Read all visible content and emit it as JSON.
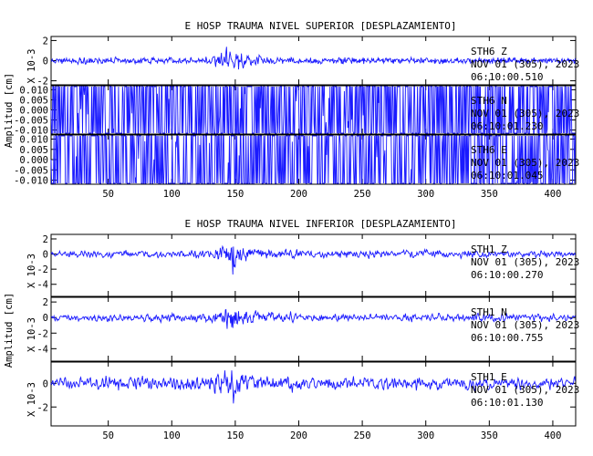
{
  "colors": {
    "trace": "#1a1aff",
    "axis": "#000000",
    "background": "#ffffff"
  },
  "chart_data": [
    {
      "type": "line",
      "title": "E HOSP TRAUMA NIVEL SUPERIOR [DESPLAZAMIENTO]",
      "ylabel": "Amplitud [cm]",
      "xlim": [
        5,
        418
      ],
      "xticks": [
        "50",
        "100",
        "150",
        "200",
        "250",
        "300",
        "350",
        "400"
      ],
      "grid": false,
      "panels": [
        {
          "scale_label": "X 10-3",
          "ylim": [
            -2.4,
            2.4
          ],
          "yticks": [
            "2",
            "0",
            "-2"
          ],
          "series": [
            {
              "station": "STH6",
              "component": "Z",
              "date": "NOV 01 (305), 2023",
              "time": "06:10:00.510",
              "x": [
                5,
                50,
                100,
                130,
                138,
                143,
                148,
                152,
                157,
                165,
                180,
                200,
                250,
                300,
                350,
                400,
                418
              ],
              "y": [
                0.1,
                0.2,
                0.1,
                0.3,
                1.4,
                2.3,
                0.8,
                1.9,
                1.1,
                0.5,
                0.3,
                0.1,
                0.0,
                0.0,
                0.0,
                0.0,
                0.0
              ]
            }
          ]
        },
        {
          "scale_label": "",
          "ylim": [
            -0.012,
            0.012
          ],
          "yticks": [
            "0.010",
            "0.005",
            "0.000",
            "-0.005",
            "-0.010"
          ],
          "series": [
            {
              "station": "STH6",
              "component": "N",
              "date": "NOV 01 (305), 2023",
              "time": "06:10:01.230",
              "x": [
                5,
                50,
                100,
                130,
                140,
                145,
                148,
                152,
                160,
                175,
                200,
                250,
                300,
                350,
                400,
                418
              ],
              "y": [
                0.0,
                0.0,
                0.0,
                0.0005,
                0.004,
                0.009,
                0.011,
                0.007,
                0.004,
                0.001,
                0.0003,
                0.0001,
                0.0,
                0.0,
                0.0,
                0.0
              ]
            }
          ]
        },
        {
          "scale_label": "",
          "ylim": [
            -0.012,
            0.012
          ],
          "yticks": [
            "0.010",
            "0.005",
            "0.000",
            "-0.005",
            "-0.010"
          ],
          "series": [
            {
              "station": "STH6",
              "component": "E",
              "date": "NOV 01 (305), 2023",
              "time": "06:10:01.045",
              "x": [
                5,
                50,
                100,
                130,
                140,
                145,
                148,
                153,
                160,
                175,
                200,
                250,
                300,
                350,
                400,
                418
              ],
              "y": [
                0.0,
                0.0,
                0.0,
                0.0005,
                0.004,
                0.008,
                0.011,
                0.006,
                0.004,
                0.0015,
                0.0005,
                0.0002,
                0.0001,
                0.0,
                0.0,
                0.0
              ]
            }
          ]
        }
      ]
    },
    {
      "type": "line",
      "title": "E HOSP TRAUMA NIVEL INFERIOR [DESPLAZAMIENTO]",
      "ylabel": "Amplitud [cm]",
      "xlim": [
        5,
        418
      ],
      "xticks": [
        "50",
        "100",
        "150",
        "200",
        "250",
        "300",
        "350",
        "400"
      ],
      "grid": false,
      "panels": [
        {
          "scale_label": "X 10-3",
          "ylim": [
            -5.6,
            2.6
          ],
          "yticks": [
            "2",
            "0",
            "-2",
            "-4"
          ],
          "series": [
            {
              "station": "STH1",
              "component": "Z",
              "date": "NOV 01 (305), 2023",
              "time": "06:10:00.270",
              "x": [
                5,
                50,
                100,
                130,
                140,
                145,
                148,
                152,
                160,
                175,
                200,
                250,
                300,
                350,
                400,
                418
              ],
              "y": [
                0.3,
                0.6,
                0.6,
                0.8,
                1.8,
                2.4,
                4.5,
                2.0,
                1.5,
                1.0,
                0.7,
                0.7,
                0.6,
                0.6,
                0.5,
                0.5
              ]
            }
          ]
        },
        {
          "scale_label": "X 10-3",
          "ylim": [
            -5.6,
            2.6
          ],
          "yticks": [
            "2",
            "0",
            "-2",
            "-4"
          ],
          "series": [
            {
              "station": "STH1",
              "component": "N",
              "date": "NOV 01 (305), 2023",
              "time": "06:10:00.755",
              "x": [
                5,
                50,
                100,
                130,
                140,
                145,
                148,
                152,
                160,
                175,
                200,
                250,
                300,
                350,
                400,
                418
              ],
              "y": [
                0.4,
                0.6,
                0.6,
                0.7,
                1.8,
                2.3,
                4.0,
                1.8,
                1.4,
                1.0,
                0.7,
                0.6,
                0.6,
                0.6,
                0.5,
                0.5
              ]
            }
          ]
        },
        {
          "scale_label": "X 10-3",
          "ylim": [
            -3.6,
            1.8
          ],
          "yticks": [
            "0",
            "-2"
          ],
          "series": [
            {
              "station": "STH1",
              "component": "E",
              "date": "NOV 01 (305), 2023",
              "time": "06:10:01.130",
              "x": [
                5,
                50,
                100,
                130,
                140,
                145,
                148,
                152,
                160,
                175,
                200,
                250,
                300,
                350,
                400,
                418
              ],
              "y": [
                0.5,
                0.8,
                0.8,
                1.0,
                1.4,
                1.8,
                3.1,
                1.5,
                1.2,
                0.9,
                0.8,
                0.7,
                0.7,
                0.7,
                0.6,
                0.6
              ]
            }
          ]
        }
      ]
    }
  ]
}
